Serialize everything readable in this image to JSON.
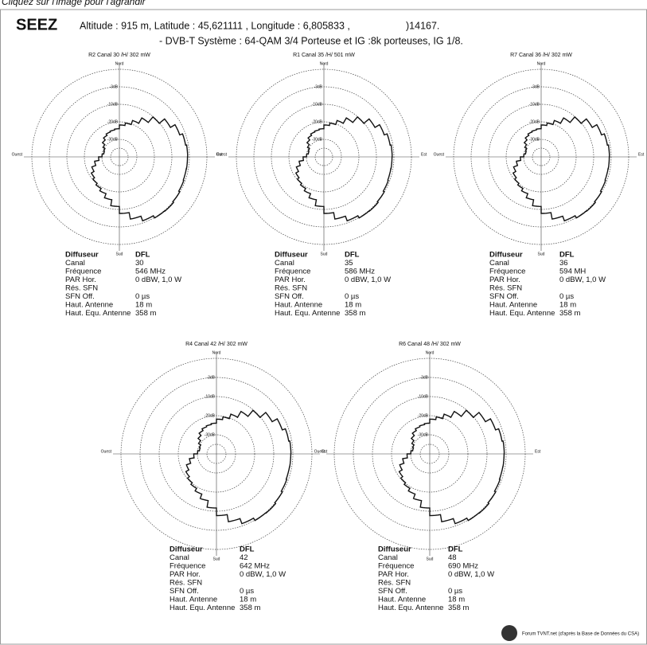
{
  "caption": "Cliquez sur l'image pour l'agrandir",
  "header": {
    "site": "SEEZ",
    "coords": "Altitude : 915 m, Latitude :  45,621111 , Longitude : 6,805833 ,",
    "code": ")14167.",
    "system": "- DVB-T  Système : 64-QAM 3/4   Porteuse et IG :8k porteuses, IG 1/8."
  },
  "compass": {
    "north": "Nord",
    "south": "Sud",
    "west": "Ouest",
    "east": "Est"
  },
  "ring_labels": [
    "-3dB",
    "-10dB",
    "-20dB",
    "-30dB"
  ],
  "diagrams": [
    {
      "title": "R2  Canal 30 /H/  302 mW",
      "info": [
        [
          "Diffuseur",
          "DFL"
        ],
        [
          "Canal",
          "30"
        ],
        [
          "Fréquence",
          "546 MHz"
        ],
        [
          "PAR Hor.",
          "0 dBW, 1,0 W"
        ],
        [
          "Rés. SFN",
          ""
        ],
        [
          "SFN Off.",
          "0 µs"
        ],
        [
          "Haut. Antenne",
          "18 m"
        ],
        [
          "Haut. Equ. Antenne",
          "358 m"
        ]
      ]
    },
    {
      "title": "R1  Canal 35 /H/  501 mW",
      "info": [
        [
          "Diffuseur",
          "DFL"
        ],
        [
          "Canal",
          "35"
        ],
        [
          "Fréquence",
          "586 MHz"
        ],
        [
          "PAR Hor.",
          "0 dBW, 1,0 W"
        ],
        [
          "Rés. SFN",
          ""
        ],
        [
          "SFN Off.",
          "0 µs"
        ],
        [
          "Haut. Antenne",
          "18 m"
        ],
        [
          "Haut. Equ. Antenne",
          "358 m"
        ]
      ]
    },
    {
      "title": "R7  Canal 36 /H/  302 mW",
      "info": [
        [
          "Diffuseur",
          "DFL"
        ],
        [
          "Canal",
          "36"
        ],
        [
          "Fréquence",
          "594 MH"
        ],
        [
          "PAR Hor.",
          "0 dBW, 1,0 W"
        ],
        [
          "Rés. SFN",
          ""
        ],
        [
          "SFN Off.",
          "0 µs"
        ],
        [
          "Haut. Antenne",
          "18 m"
        ],
        [
          "Haut. Equ. Antenne",
          "358 m"
        ]
      ]
    },
    {
      "title": "R4  Canal 42 /H/  302 mW",
      "info": [
        [
          "Diffuseur",
          "DFL"
        ],
        [
          "Canal",
          "42"
        ],
        [
          "Fréquence",
          "642 MHz"
        ],
        [
          "PAR Hor.",
          "0 dBW, 1,0 W"
        ],
        [
          "Rés. SFN",
          ""
        ],
        [
          "SFN Off.",
          "0 µs"
        ],
        [
          "Haut. Antenne",
          "18 m"
        ],
        [
          "Haut. Equ. Antenne",
          "358 m"
        ]
      ]
    },
    {
      "title": "R6  Canal 48 /H/  302 mW",
      "info": [
        [
          "Diffuseur",
          "DFL"
        ],
        [
          "Canal",
          "48"
        ],
        [
          "Fréquence",
          "690 MHz"
        ],
        [
          "PAR Hor.",
          "0 dBW, 1,0 W"
        ],
        [
          "Rés. SFN",
          ""
        ],
        [
          "SFN Off.",
          "0 µs"
        ],
        [
          "Haut. Antenne",
          "18 m"
        ],
        [
          "Haut. Equ. Antenne",
          "358 m"
        ]
      ]
    }
  ],
  "footer": "Forum TVNT.net (d'après la Base de Données du CSA)"
}
